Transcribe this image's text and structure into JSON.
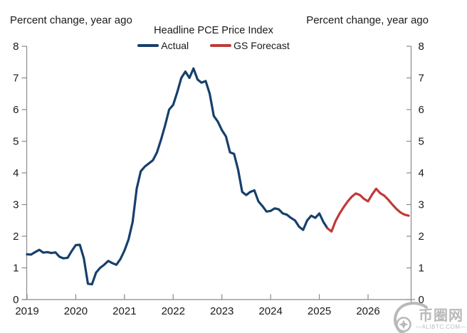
{
  "chart_data": {
    "type": "line",
    "title": "Headline PCE Price Index",
    "y_axis_title_left": "Percent change, year ago",
    "y_axis_title_right": "Percent change, year ago",
    "ylim": [
      0,
      8
    ],
    "y_ticks": [
      0,
      1,
      2,
      3,
      4,
      5,
      6,
      7,
      8
    ],
    "x_ticks": [
      2019,
      2020,
      2021,
      2022,
      2023,
      2024,
      2025,
      2026
    ],
    "x_unit": "month",
    "grid": false,
    "legend_position": "top-center",
    "series": [
      {
        "name": "Actual",
        "color": "#17406b",
        "start": "2019-01",
        "start_month_index": 0,
        "values": [
          1.43,
          1.42,
          1.5,
          1.57,
          1.48,
          1.5,
          1.47,
          1.49,
          1.35,
          1.3,
          1.32,
          1.53,
          1.72,
          1.73,
          1.3,
          0.5,
          0.48,
          0.85,
          1.0,
          1.1,
          1.22,
          1.15,
          1.1,
          1.28,
          1.55,
          1.9,
          2.45,
          3.5,
          4.05,
          4.2,
          4.3,
          4.4,
          4.65,
          5.05,
          5.5,
          6.0,
          6.15,
          6.55,
          7.0,
          7.2,
          7.0,
          7.3,
          6.95,
          6.85,
          6.9,
          6.5,
          5.8,
          5.62,
          5.35,
          5.15,
          4.65,
          4.6,
          4.1,
          3.4,
          3.3,
          3.4,
          3.45,
          3.1,
          2.95,
          2.78,
          2.8,
          2.88,
          2.85,
          2.72,
          2.68,
          2.58,
          2.5,
          2.3,
          2.2,
          2.5,
          2.65,
          2.58,
          2.72,
          2.45,
          2.25
        ]
      },
      {
        "name": "GS Forecast",
        "color": "#bf3a38",
        "start": "2025-03",
        "start_month_index": 74,
        "values": [
          2.25,
          2.15,
          2.48,
          2.72,
          2.92,
          3.1,
          3.25,
          3.35,
          3.3,
          3.18,
          3.1,
          3.32,
          3.5,
          3.36,
          3.28,
          3.15,
          3.0,
          2.86,
          2.75,
          2.68,
          2.65
        ]
      }
    ]
  },
  "watermark": {
    "logo": "coin-circle-logo",
    "text_cjk": "币圈网",
    "text_site": "—ALIBTC.COM—"
  }
}
